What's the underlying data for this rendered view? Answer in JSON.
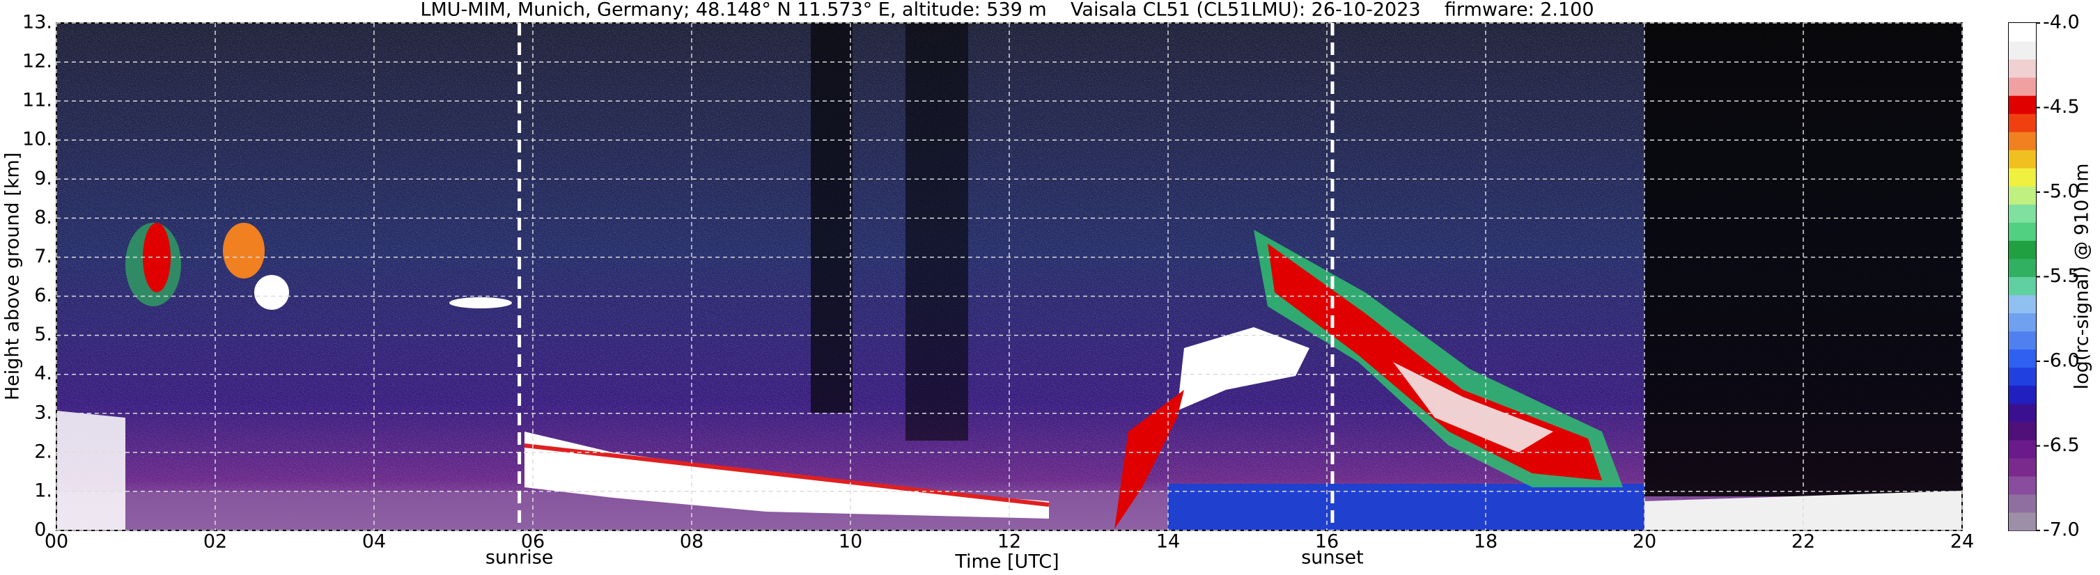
{
  "chart_data": {
    "type": "heatmap",
    "title": "LMU-MIM, Munich, Germany; 48.148° N 11.573° E, altitude: 539 m    Vaisala CL51 (CL51LMU): 26-10-2023    firmware: 2.100",
    "xlabel": "Time [UTC]",
    "ylabel": "Height above ground [km]",
    "xlim": [
      0,
      24
    ],
    "xticks": [
      {
        "value": 0,
        "label": "00"
      },
      {
        "value": 2,
        "label": "02"
      },
      {
        "value": 4,
        "label": "04"
      },
      {
        "value": 6,
        "label": "06"
      },
      {
        "value": 8,
        "label": "08"
      },
      10,
      12,
      14,
      16,
      18,
      20,
      22,
      24
    ],
    "ylim": [
      0,
      13
    ],
    "yticks": [
      {
        "value": 0,
        "label": "0."
      },
      {
        "value": 1,
        "label": "1."
      },
      {
        "value": 2,
        "label": "2."
      },
      {
        "value": 3,
        "label": "3."
      },
      {
        "value": 4,
        "label": "4."
      },
      {
        "value": 5,
        "label": "5."
      },
      {
        "value": 6,
        "label": "6."
      },
      {
        "value": 7,
        "label": "7."
      },
      {
        "value": 8,
        "label": "8."
      },
      {
        "value": 9,
        "label": "9."
      },
      {
        "value": 10,
        "label": "10."
      },
      {
        "value": 11,
        "label": "11."
      },
      {
        "value": 12,
        "label": "12."
      },
      {
        "value": 13,
        "label": "13."
      }
    ],
    "grid": true,
    "annotations": [
      {
        "x": 5.83,
        "label": "sunrise"
      },
      {
        "x": 16.07,
        "label": "sunset"
      }
    ],
    "colorbar": {
      "label": "log(rc-signal) @ 910 nm",
      "lim": [
        -7,
        -4
      ],
      "ticks": [
        {
          "value": -7,
          "label": "-7.0"
        },
        {
          "value": -6.5,
          "label": "-6.5"
        },
        {
          "value": -6,
          "label": "-6.0"
        },
        {
          "value": -5.5,
          "label": "-5.5"
        },
        {
          "value": -5,
          "label": "-5.0"
        },
        {
          "value": -4.5,
          "label": "-4.5"
        },
        {
          "value": -4,
          "label": "-4.0"
        }
      ],
      "colors": [
        "#9d8fa8",
        "#8f6fa0",
        "#8a4c9e",
        "#7a2a8c",
        "#6a1a8a",
        "#50107a",
        "#3a1090",
        "#2020c0",
        "#2040e0",
        "#3060f0",
        "#5080f0",
        "#70a0f0",
        "#90c0f0",
        "#60d0a0",
        "#30b060",
        "#20a040",
        "#50d080",
        "#80e0a0",
        "#c0f080",
        "#f0f040",
        "#f0c020",
        "#f08020",
        "#f04010",
        "#e00000",
        "#f0a0a0",
        "#f0d0d0",
        "#f0f0f0",
        "#ffffff"
      ]
    }
  }
}
